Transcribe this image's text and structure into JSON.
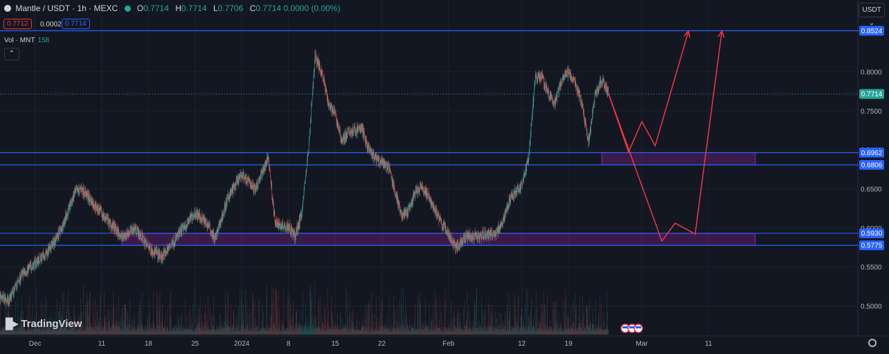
{
  "header": {
    "symbol": "Mantle / USDT · 1h · MEXC",
    "ohlc": [
      {
        "key": "O",
        "value": "0.7714"
      },
      {
        "key": "H",
        "value": "0.7714"
      },
      {
        "key": "L",
        "value": "0.7706"
      },
      {
        "key": "C",
        "value": "0.7714"
      }
    ],
    "change": "0.0000 (0.00%)",
    "bid": "0.7712",
    "spread": "0.0002",
    "ask": "0.7714",
    "volume_label": "Vol · MNT",
    "volume_value": "158",
    "currency": "USDT",
    "brand": "TradingView"
  },
  "colors": {
    "background": "#131722",
    "up": "#26a69a",
    "down": "#ef5350",
    "level_line": "#2962ff",
    "zone": "#9c27b0",
    "projection": "#f23645"
  },
  "chart_data": {
    "type": "candlestick",
    "x_tick_labels": [
      "Dec",
      "11",
      "18",
      "25",
      "2024",
      "8",
      "15",
      "22",
      "Feb",
      "12",
      "19",
      "Mar",
      "11"
    ],
    "y_tick_labels": [
      "0.5000",
      "0.5500",
      "0.6000",
      "0.6500",
      "0.7000",
      "0.7500",
      "0.8000"
    ],
    "ylim": [
      0.475,
      0.866
    ],
    "current_price": "0.7714",
    "levels": [
      {
        "price": 0.8524,
        "label": "0.8524"
      },
      {
        "price": 0.6962,
        "label": "0.6962"
      },
      {
        "price": 0.6806,
        "label": "0.6806"
      },
      {
        "price": 0.593,
        "label": "0.5930"
      },
      {
        "price": 0.5775,
        "label": "0.5775"
      }
    ],
    "zones": [
      {
        "from": "2023-12-14",
        "to": "2024-03-18",
        "low": 0.5775,
        "high": 0.593
      },
      {
        "from": "2024-02-24",
        "to": "2024-03-18",
        "low": 0.6806,
        "high": 0.6962
      }
    ],
    "price_path": [
      {
        "date": "2023-11-24",
        "price": 0.52
      },
      {
        "date": "2023-11-27",
        "price": 0.505
      },
      {
        "date": "2023-11-29",
        "price": 0.54
      },
      {
        "date": "2023-12-01",
        "price": 0.555
      },
      {
        "date": "2023-12-03",
        "price": 0.57
      },
      {
        "date": "2023-12-05",
        "price": 0.6
      },
      {
        "date": "2023-12-07",
        "price": 0.645
      },
      {
        "date": "2023-12-08",
        "price": 0.65
      },
      {
        "date": "2023-12-10",
        "price": 0.628
      },
      {
        "date": "2023-12-12",
        "price": 0.608
      },
      {
        "date": "2023-12-14",
        "price": 0.588
      },
      {
        "date": "2023-12-16",
        "price": 0.6
      },
      {
        "date": "2023-12-18",
        "price": 0.575
      },
      {
        "date": "2023-12-20",
        "price": 0.562
      },
      {
        "date": "2023-12-22",
        "price": 0.585
      },
      {
        "date": "2023-12-25",
        "price": 0.62
      },
      {
        "date": "2023-12-27",
        "price": 0.603
      },
      {
        "date": "2023-12-28",
        "price": 0.585
      },
      {
        "date": "2023-12-30",
        "price": 0.64
      },
      {
        "date": "2024-01-01",
        "price": 0.668
      },
      {
        "date": "2024-01-03",
        "price": 0.65
      },
      {
        "date": "2024-01-05",
        "price": 0.69
      },
      {
        "date": "2024-01-06",
        "price": 0.605
      },
      {
        "date": "2024-01-08",
        "price": 0.602
      },
      {
        "date": "2024-01-09",
        "price": 0.588
      },
      {
        "date": "2024-01-10",
        "price": 0.62
      },
      {
        "date": "2024-01-11",
        "price": 0.7
      },
      {
        "date": "2024-01-12",
        "price": 0.82
      },
      {
        "date": "2024-01-13",
        "price": 0.8
      },
      {
        "date": "2024-01-14",
        "price": 0.76
      },
      {
        "date": "2024-01-15",
        "price": 0.745
      },
      {
        "date": "2024-01-16",
        "price": 0.712
      },
      {
        "date": "2024-01-17",
        "price": 0.722
      },
      {
        "date": "2024-01-19",
        "price": 0.728
      },
      {
        "date": "2024-01-20",
        "price": 0.7
      },
      {
        "date": "2024-01-21",
        "price": 0.688
      },
      {
        "date": "2024-01-23",
        "price": 0.678
      },
      {
        "date": "2024-01-25",
        "price": 0.615
      },
      {
        "date": "2024-01-26",
        "price": 0.62
      },
      {
        "date": "2024-01-27",
        "price": 0.645
      },
      {
        "date": "2024-01-28",
        "price": 0.652
      },
      {
        "date": "2024-01-29",
        "price": 0.64
      },
      {
        "date": "2024-01-31",
        "price": 0.605
      },
      {
        "date": "2024-02-01",
        "price": 0.592
      },
      {
        "date": "2024-02-02",
        "price": 0.575
      },
      {
        "date": "2024-02-04",
        "price": 0.59
      },
      {
        "date": "2024-02-06",
        "price": 0.59
      },
      {
        "date": "2024-02-08",
        "price": 0.592
      },
      {
        "date": "2024-02-09",
        "price": 0.605
      },
      {
        "date": "2024-02-10",
        "price": 0.632
      },
      {
        "date": "2024-02-11",
        "price": 0.645
      },
      {
        "date": "2024-02-12",
        "price": 0.655
      },
      {
        "date": "2024-02-13",
        "price": 0.69
      },
      {
        "date": "2024-02-14",
        "price": 0.79
      },
      {
        "date": "2024-02-15",
        "price": 0.795
      },
      {
        "date": "2024-02-16",
        "price": 0.77
      },
      {
        "date": "2024-02-17",
        "price": 0.76
      },
      {
        "date": "2024-02-18",
        "price": 0.79
      },
      {
        "date": "2024-02-19",
        "price": 0.8
      },
      {
        "date": "2024-02-20",
        "price": 0.785
      },
      {
        "date": "2024-02-21",
        "price": 0.76
      },
      {
        "date": "2024-02-22",
        "price": 0.71
      },
      {
        "date": "2024-02-23",
        "price": 0.77
      },
      {
        "date": "2024-02-24",
        "price": 0.79
      },
      {
        "date": "2024-02-25",
        "price": 0.7714
      }
    ],
    "projections": [
      [
        {
          "date": "2024-02-25",
          "price": 0.772
        },
        {
          "date": "2024-02-28",
          "price": 0.697
        },
        {
          "date": "2024-03-01",
          "price": 0.736
        },
        {
          "date": "2024-03-03",
          "price": 0.705
        },
        {
          "date": "2024-03-08",
          "price": 0.852
        }
      ],
      [
        {
          "date": "2024-02-25",
          "price": 0.772
        },
        {
          "date": "2024-03-04",
          "price": 0.583
        },
        {
          "date": "2024-03-06",
          "price": 0.606
        },
        {
          "date": "2024-03-09",
          "price": 0.592
        },
        {
          "date": "2024-03-13",
          "price": 0.852
        }
      ]
    ]
  }
}
